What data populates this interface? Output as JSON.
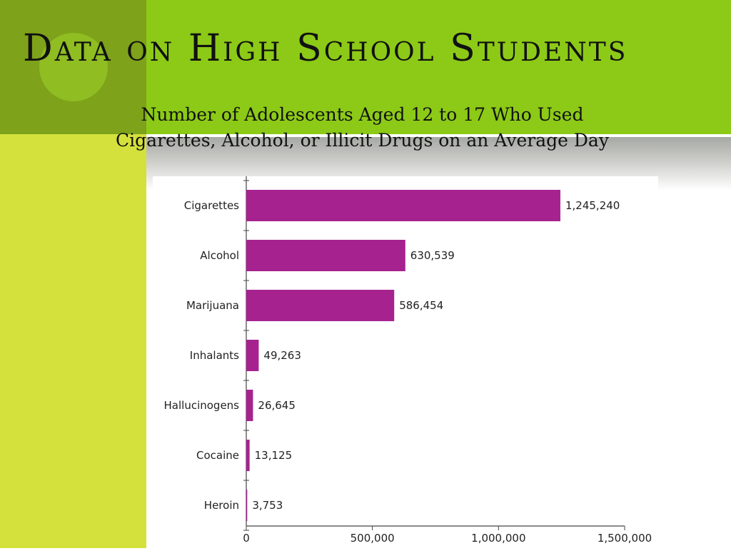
{
  "slide": {
    "title": "Data on High School Students",
    "subtitle_line1": "Number of Adolescents Aged 12 to 17 Who Used",
    "subtitle_line2": "Cigarettes, Alcohol, or Illicit Drugs on an Average Day"
  },
  "colors": {
    "bar": "#a6238f",
    "top_band": "#8cca17",
    "left_band": "#d4e13c",
    "corner": "#7ea21a"
  },
  "chart_data": {
    "type": "bar",
    "orientation": "horizontal",
    "categories": [
      "Cigarettes",
      "Alcohol",
      "Marijuana",
      "Inhalants",
      "Hallucinogens",
      "Cocaine",
      "Heroin"
    ],
    "values": [
      1245240,
      630539,
      586454,
      49263,
      26645,
      13125,
      3753
    ],
    "value_labels": [
      "1,245,240",
      "630,539",
      "586,454",
      "49,263",
      "26,645",
      "13,125",
      "3,753"
    ],
    "xlim": [
      0,
      1500000
    ],
    "xticks": [
      0,
      500000,
      1000000,
      1500000
    ],
    "xtick_labels": [
      "0",
      "500,000",
      "1,000,000",
      "1,500,000"
    ],
    "grid": false,
    "legend": "none"
  }
}
